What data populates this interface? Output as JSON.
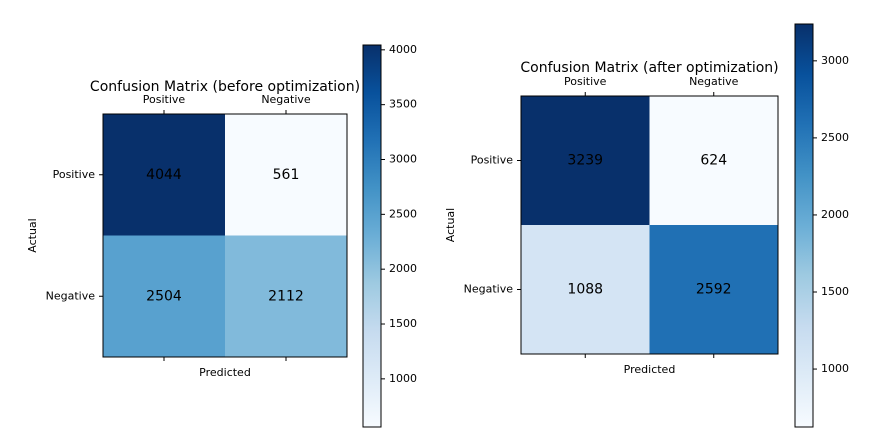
{
  "chart_data": [
    {
      "type": "heatmap",
      "title": "Confusion Matrix (before optimization)",
      "x_label": "Predicted",
      "y_label": "Actual",
      "x_categories": [
        "Positive",
        "Negative"
      ],
      "y_categories": [
        "Positive",
        "Negative"
      ],
      "values": [
        [
          4044,
          561
        ],
        [
          2504,
          2112
        ]
      ],
      "colormap": "Blues",
      "clim": [
        561,
        4044
      ],
      "cticks": [
        1000,
        1500,
        2000,
        2500,
        3000,
        3500,
        4000
      ]
    },
    {
      "type": "heatmap",
      "title": "Confusion Matrix (after optimization)",
      "x_label": "Predicted",
      "y_label": "Actual",
      "x_categories": [
        "Positive",
        "Negative"
      ],
      "y_categories": [
        "Positive",
        "Negative"
      ],
      "values": [
        [
          3239,
          624
        ],
        [
          1088,
          2592
        ]
      ],
      "colormap": "Blues",
      "clim": [
        624,
        3239
      ],
      "cticks": [
        1000,
        1500,
        2000,
        2500,
        3000
      ]
    }
  ]
}
